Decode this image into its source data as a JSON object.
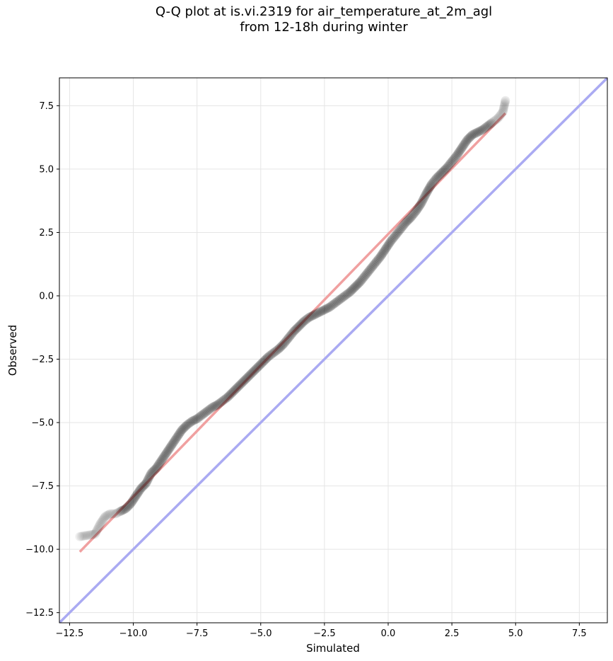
{
  "chart_data": {
    "type": "scatter",
    "title": "Q-Q plot at is.vi.2319 for air_temperature_at_2m_agl",
    "subtitle": "from 12-18h during winter",
    "xlabel": "Simulated",
    "ylabel": "Observed",
    "xlim": [
      -12.9,
      8.6
    ],
    "ylim": [
      -12.9,
      8.6
    ],
    "grid": true,
    "x_ticks": [
      -12.5,
      -10.0,
      -7.5,
      -5.0,
      -2.5,
      0.0,
      2.5,
      5.0,
      7.5
    ],
    "y_ticks": [
      -12.5,
      -10.0,
      -7.5,
      -5.0,
      -2.5,
      0.0,
      2.5,
      5.0,
      7.5
    ],
    "x_tick_labels": [
      "−12.5",
      "−10.0",
      "−7.5",
      "−5.0",
      "−2.5",
      "0.0",
      "2.5",
      "5.0",
      "7.5"
    ],
    "y_tick_labels": [
      "−12.5",
      "−10.0",
      "−7.5",
      "−5.0",
      "−2.5",
      "0.0",
      "2.5",
      "5.0",
      "7.5"
    ],
    "reference_line": {
      "type": "identity",
      "color": "#aaaaf2"
    },
    "fit_line": {
      "x": [
        -12.1,
        4.6
      ],
      "y": [
        -10.1,
        7.2
      ],
      "color": "#f0a0a0"
    },
    "quantiles": {
      "color": "#000000",
      "x": [
        -12.1,
        -11.5,
        -11.3,
        -11.1,
        -10.9,
        -10.7,
        -10.5,
        -10.3,
        -10.1,
        -9.9,
        -9.7,
        -9.5,
        -9.3,
        -9.1,
        -8.9,
        -8.7,
        -8.5,
        -8.3,
        -8.1,
        -7.9,
        -7.7,
        -7.5,
        -7.3,
        -7.1,
        -6.9,
        -6.7,
        -6.5,
        -6.3,
        -6.1,
        -5.9,
        -5.7,
        -5.5,
        -5.3,
        -5.1,
        -4.9,
        -4.7,
        -4.5,
        -4.3,
        -4.1,
        -3.9,
        -3.7,
        -3.5,
        -3.3,
        -3.1,
        -2.9,
        -2.7,
        -2.5,
        -2.3,
        -2.1,
        -1.9,
        -1.7,
        -1.5,
        -1.3,
        -1.1,
        -0.9,
        -0.7,
        -0.5,
        -0.3,
        -0.1,
        0.1,
        0.3,
        0.5,
        0.7,
        0.9,
        1.1,
        1.3,
        1.5,
        1.7,
        1.9,
        2.1,
        2.3,
        2.5,
        2.7,
        2.9,
        3.1,
        3.3,
        3.5,
        3.7,
        3.9,
        4.1,
        4.3,
        4.5,
        4.6
      ],
      "y": [
        -9.5,
        -9.4,
        -9.0,
        -8.7,
        -8.6,
        -8.6,
        -8.5,
        -8.4,
        -8.2,
        -7.9,
        -7.6,
        -7.4,
        -7.0,
        -6.8,
        -6.5,
        -6.2,
        -5.9,
        -5.6,
        -5.3,
        -5.1,
        -4.95,
        -4.85,
        -4.7,
        -4.55,
        -4.4,
        -4.3,
        -4.15,
        -4.0,
        -3.8,
        -3.6,
        -3.4,
        -3.2,
        -3.0,
        -2.8,
        -2.6,
        -2.4,
        -2.25,
        -2.1,
        -1.9,
        -1.65,
        -1.4,
        -1.2,
        -1.0,
        -0.85,
        -0.75,
        -0.65,
        -0.55,
        -0.45,
        -0.3,
        -0.15,
        0.0,
        0.15,
        0.35,
        0.55,
        0.8,
        1.05,
        1.3,
        1.55,
        1.85,
        2.15,
        2.4,
        2.65,
        2.9,
        3.1,
        3.35,
        3.65,
        4.05,
        4.4,
        4.65,
        4.85,
        5.05,
        5.3,
        5.55,
        5.85,
        6.15,
        6.35,
        6.45,
        6.55,
        6.7,
        6.85,
        7.0,
        7.25,
        7.7
      ]
    }
  }
}
